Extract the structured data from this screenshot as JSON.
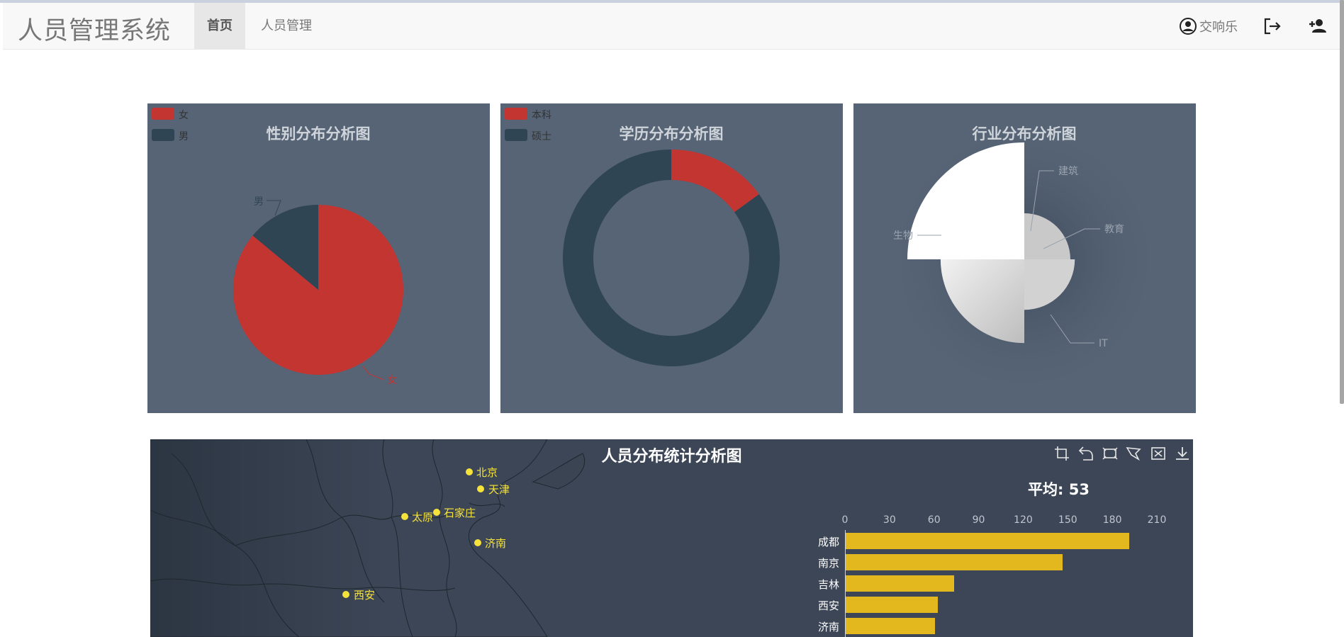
{
  "navbar": {
    "brand": "人员管理系统",
    "tabs": [
      {
        "label": "首页",
        "active": true
      },
      {
        "label": "人员管理",
        "active": false
      }
    ],
    "user_name": "交响乐",
    "icons": {
      "user": "user-circle-icon",
      "logout": "logout-icon",
      "add_user": "add-user-icon"
    }
  },
  "gender_chart": {
    "chart_data": {
      "type": "pie",
      "title": "性别分布分析图",
      "legend": [
        "女",
        "男"
      ],
      "legend_position": "top-left",
      "slices": [
        {
          "name": "女",
          "value": 86,
          "color": "#c23531"
        },
        {
          "name": "男",
          "value": 14,
          "color": "#2f4554"
        }
      ]
    }
  },
  "education_chart": {
    "chart_data": {
      "type": "pie",
      "variant": "donut",
      "title": "学历分布分析图",
      "legend": [
        "本科",
        "硕士"
      ],
      "legend_position": "top-left",
      "slices": [
        {
          "name": "本科",
          "value": 15,
          "color": "#c23531"
        },
        {
          "name": "硕士",
          "value": 85,
          "color": "#2f4554"
        }
      ]
    }
  },
  "industry_chart": {
    "chart_data": {
      "type": "pie",
      "variant": "rose",
      "title": "行业分布分析图",
      "slices": [
        {
          "name": "建筑",
          "value": 8
        },
        {
          "name": "教育",
          "value": 10
        },
        {
          "name": "IT",
          "value": 25
        },
        {
          "name": "生物",
          "value": 40
        }
      ]
    }
  },
  "map_chart": {
    "title": "人员分布统计分析图",
    "toolbox_icons": [
      "crop-icon",
      "undo-icon",
      "rect-select-icon",
      "lasso-icon",
      "clear-selection-icon",
      "download-icon"
    ],
    "cities": [
      {
        "name": "北京"
      },
      {
        "name": "天津"
      },
      {
        "name": "石家庄"
      },
      {
        "name": "太原"
      },
      {
        "name": "济南"
      },
      {
        "name": "西安"
      }
    ],
    "chart_data": {
      "type": "bar",
      "orientation": "horizontal",
      "title": "平均: 53",
      "x_ticks": [
        "0",
        "30",
        "60",
        "90",
        "120",
        "150",
        "180",
        "210"
      ],
      "xlim": [
        0,
        210
      ],
      "categories": [
        "成都",
        "南京",
        "吉林",
        "西安",
        "济南"
      ],
      "values": [
        191,
        146,
        73,
        62,
        60
      ],
      "bar_color": "#e2b81e"
    }
  }
}
